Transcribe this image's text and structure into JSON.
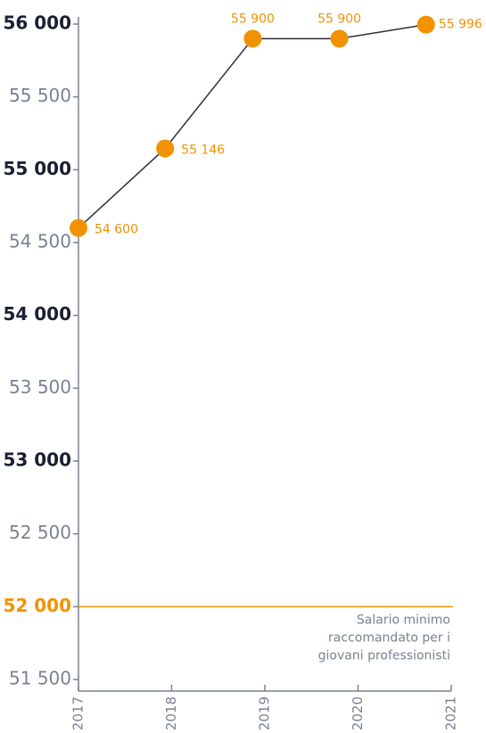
{
  "chart_data": {
    "type": "line",
    "x": [
      2017,
      2017.93,
      2018.87,
      2019.8,
      2020.73
    ],
    "series": [
      {
        "color": "#f39200",
        "line_color": "#2a2f3a",
        "values": [
          54600,
          55146,
          55900,
          55900,
          55996
        ],
        "value_labels": [
          "54 600",
          "55 146",
          "55 900",
          "55 900",
          "55 996"
        ]
      }
    ],
    "xlim": [
      2017,
      2021
    ],
    "xticks": [
      2017,
      2018,
      2019,
      2020,
      2021
    ],
    "ylim": [
      51500,
      56000
    ],
    "yticks": [
      {
        "value": 51500,
        "label": "51 500"
      },
      {
        "value": 52000,
        "label": "52 000",
        "bold": true
      },
      {
        "value": 52500,
        "label": "52 500"
      },
      {
        "value": 53000,
        "label": "53 000",
        "bold": true
      },
      {
        "value": 53500,
        "label": "53 500"
      },
      {
        "value": 54000,
        "label": "54 000",
        "bold": true
      },
      {
        "value": 54500,
        "label": "54 500"
      },
      {
        "value": 55000,
        "label": "55 000",
        "bold": true
      },
      {
        "value": 55500,
        "label": "55 500"
      },
      {
        "value": 56000,
        "label": "56 000",
        "bold": true
      }
    ],
    "reference_line": {
      "value": 52000,
      "color": "#f39200",
      "text": [
        "Salario minimo",
        "raccomandato per i",
        "giovani professionisti"
      ]
    }
  }
}
